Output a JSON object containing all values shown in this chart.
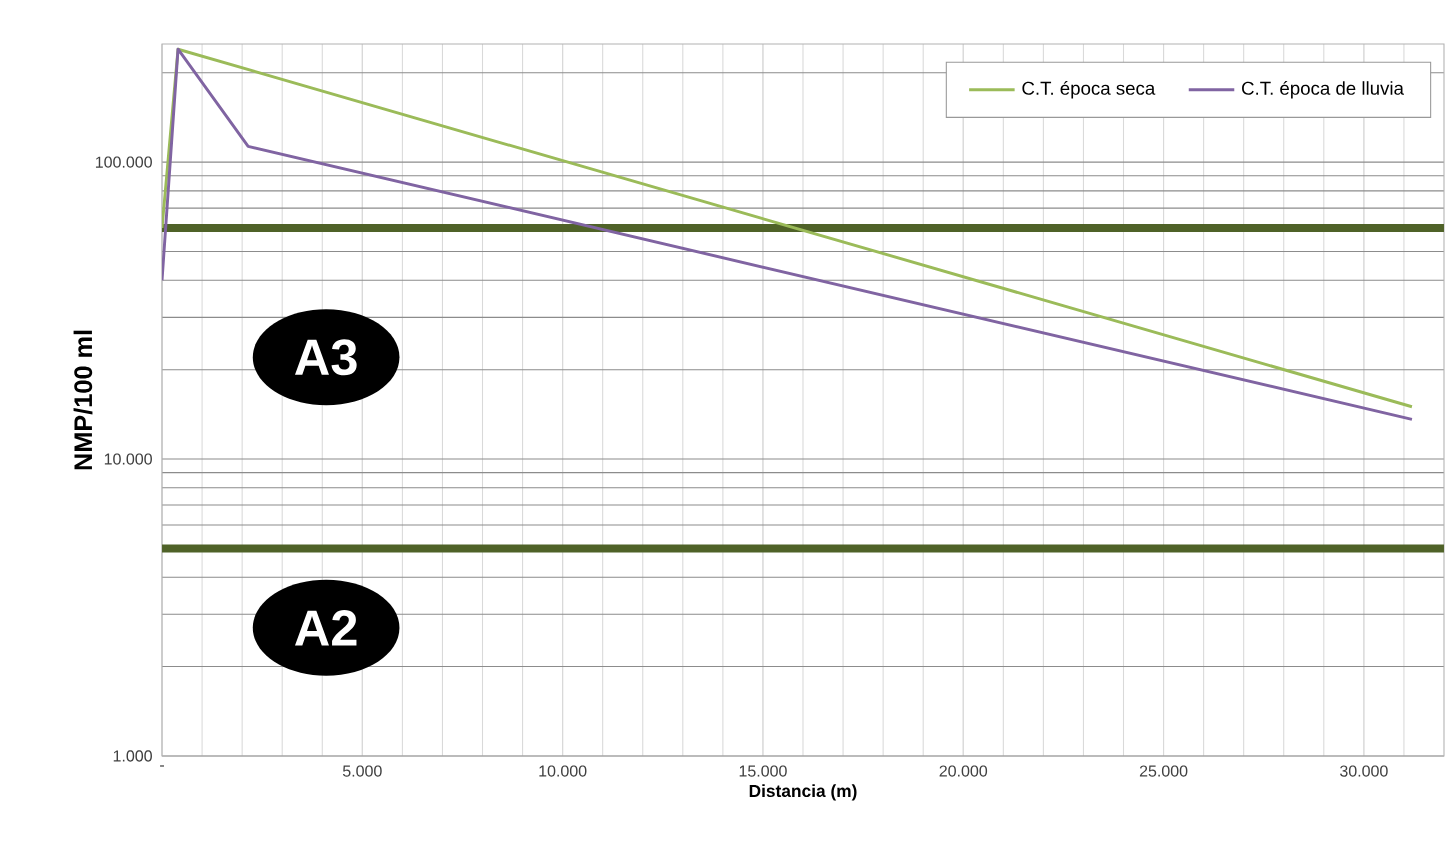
{
  "chart_data": {
    "type": "line",
    "xlabel": "Distancia (m)",
    "ylabel": "NMP/100 ml",
    "xlim": [
      0,
      32000
    ],
    "ylim": [
      1000,
      250000
    ],
    "log": "y",
    "grid": true,
    "legend": "top right",
    "marker": "none",
    "line_style": "solid",
    "xticks": [
      {
        "value": 0,
        "label": "-"
      },
      {
        "value": 5000,
        "label": "5.000"
      },
      {
        "value": 10000,
        "label": "10.000"
      },
      {
        "value": 15000,
        "label": "15.000"
      },
      {
        "value": 20000,
        "label": "20.000"
      },
      {
        "value": 25000,
        "label": "25.000"
      },
      {
        "value": 30000,
        "label": "30.000"
      }
    ],
    "yticks": [
      {
        "value": 1000,
        "label": "1.000"
      },
      {
        "value": 10000,
        "label": "10.000"
      },
      {
        "value": 100000,
        "label": "100.000"
      }
    ],
    "series": [
      {
        "name": "C.T. época seca",
        "color": "#9bbb59",
        "x": [
          0,
          400,
          31200
        ],
        "values": [
          60000,
          240000,
          15000
        ]
      },
      {
        "name": "C.T. época de lluvia",
        "color": "#8064a2",
        "x": [
          0,
          400,
          2150,
          31200
        ],
        "values": [
          40000,
          240000,
          113000,
          13600
        ]
      }
    ],
    "ref_lines": [
      {
        "axis": "y",
        "value": 60000,
        "color": "#4f6228"
      },
      {
        "axis": "y",
        "value": 5000,
        "color": "#4f6228"
      }
    ],
    "annotations": [
      "A3",
      "A2"
    ]
  }
}
